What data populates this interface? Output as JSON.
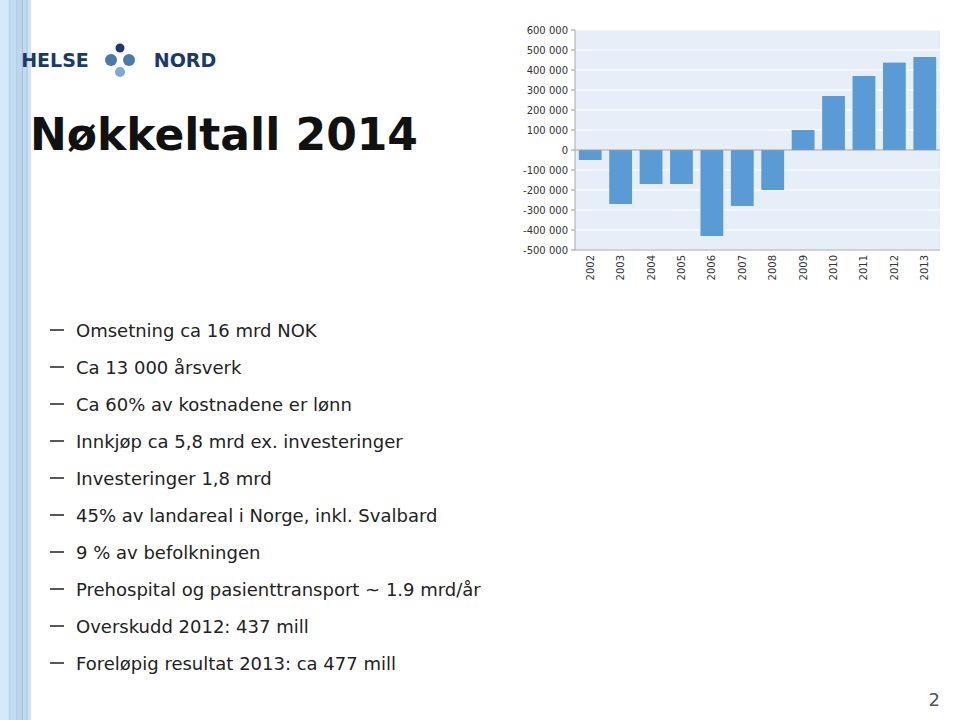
{
  "logo": {
    "left": "HELSE",
    "right": "NORD"
  },
  "title": "Nøkkeltall 2014",
  "bullet_points": [
    "Omsetning ca 16 mrd NOK",
    "Ca 13 000 årsverk",
    "Ca 60% av kostnadene er lønn",
    "Innkjøp ca 5,8 mrd ex. investeringer",
    "Investeringer 1,8 mrd",
    "45% av landareal i Norge, inkl. Svalbard",
    "9 % av befolkningen",
    "Prehospital og pasienttransport ~ 1.9 mrd/år",
    "Overskudd 2012: 437 mill",
    "Foreløpig resultat 2013: ca 477 mill"
  ],
  "page_number": "2",
  "chart_data": {
    "type": "bar",
    "categories": [
      "2002",
      "2003",
      "2004",
      "2005",
      "2006",
      "2007",
      "2008",
      "2009",
      "2010",
      "2011",
      "2012",
      "2013"
    ],
    "values": [
      -50000,
      -270000,
      -170000,
      -170000,
      -430000,
      -280000,
      -200000,
      100000,
      270000,
      370000,
      437000,
      465000
    ],
    "color": "#5b9bd5",
    "ylim": [
      -500000,
      600000
    ],
    "yticks": [
      {
        "value": -500000,
        "label": "-500 000"
      },
      {
        "value": -400000,
        "label": "-400 000"
      },
      {
        "value": -300000,
        "label": "-300 000"
      },
      {
        "value": -200000,
        "label": "-200 000"
      },
      {
        "value": -100000,
        "label": "-100 000"
      },
      0,
      {
        "value": 100000,
        "label": "100 000"
      },
      {
        "value": 200000,
        "label": "200 000"
      },
      {
        "value": 300000,
        "label": "300 000"
      },
      {
        "value": 400000,
        "label": "400 000"
      },
      {
        "value": 500000,
        "label": "500 000"
      },
      {
        "value": 600000,
        "label": "600 000"
      }
    ],
    "grid": true
  }
}
